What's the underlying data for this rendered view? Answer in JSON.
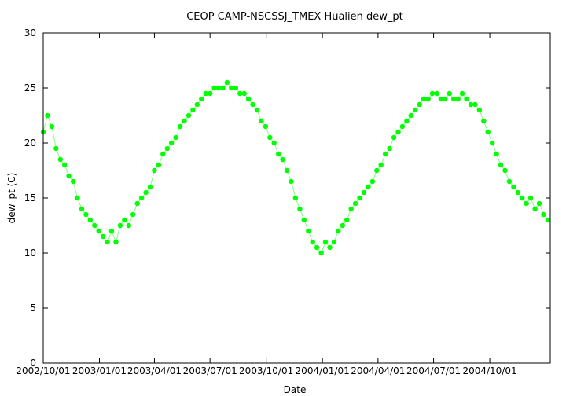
{
  "chart_data": {
    "type": "scatter",
    "title": "CEOP CAMP-NSCSSJ_TMEX Hualien  dew_pt",
    "xlabel": "Date",
    "ylabel": "dew_pt (C)",
    "ylim": [
      0,
      30
    ],
    "yticks": [
      0,
      5,
      10,
      15,
      20,
      25,
      30
    ],
    "xlim": [
      "2002-10-01",
      "2005-01-08"
    ],
    "xticks": [
      {
        "date": "2002-10-01",
        "label": "2002/10/01"
      },
      {
        "date": "2003-01-01",
        "label": "2003/01/01"
      },
      {
        "date": "2003-04-01",
        "label": "2003/04/01"
      },
      {
        "date": "2003-07-01",
        "label": "2003/07/01"
      },
      {
        "date": "2003-10-01",
        "label": "2003/10/01"
      },
      {
        "date": "2004-01-01",
        "label": "2004/01/01"
      },
      {
        "date": "2004-04-01",
        "label": "2004/04/01"
      },
      {
        "date": "2004-07-01",
        "label": "2004/07/01"
      },
      {
        "date": "2004-10-01",
        "label": "2004/10/01"
      }
    ],
    "grid": false,
    "marker_color": "#00ff00",
    "series": [
      {
        "points": [
          [
            "2002-10-01",
            21.0
          ],
          [
            "2002-10-08",
            22.5
          ],
          [
            "2002-10-15",
            21.5
          ],
          [
            "2002-10-22",
            19.5
          ],
          [
            "2002-10-29",
            18.5
          ],
          [
            "2002-11-05",
            18.0
          ],
          [
            "2002-11-12",
            17.0
          ],
          [
            "2002-11-19",
            16.5
          ],
          [
            "2002-11-26",
            15.0
          ],
          [
            "2002-12-03",
            14.0
          ],
          [
            "2002-12-10",
            13.5
          ],
          [
            "2002-12-17",
            13.0
          ],
          [
            "2002-12-24",
            12.5
          ],
          [
            "2002-12-31",
            12.0
          ],
          [
            "2003-01-07",
            11.5
          ],
          [
            "2003-01-14",
            11.0
          ],
          [
            "2003-01-21",
            12.0
          ],
          [
            "2003-01-28",
            11.0
          ],
          [
            "2003-02-04",
            12.5
          ],
          [
            "2003-02-11",
            13.0
          ],
          [
            "2003-02-18",
            12.5
          ],
          [
            "2003-02-25",
            13.5
          ],
          [
            "2003-03-04",
            14.5
          ],
          [
            "2003-03-11",
            15.0
          ],
          [
            "2003-03-18",
            15.5
          ],
          [
            "2003-03-25",
            16.0
          ],
          [
            "2003-04-01",
            17.5
          ],
          [
            "2003-04-08",
            18.0
          ],
          [
            "2003-04-15",
            19.0
          ],
          [
            "2003-04-22",
            19.5
          ],
          [
            "2003-04-29",
            20.0
          ],
          [
            "2003-05-06",
            20.5
          ],
          [
            "2003-05-13",
            21.5
          ],
          [
            "2003-05-20",
            22.0
          ],
          [
            "2003-05-27",
            22.5
          ],
          [
            "2003-06-03",
            23.0
          ],
          [
            "2003-06-10",
            23.5
          ],
          [
            "2003-06-17",
            24.0
          ],
          [
            "2003-06-24",
            24.5
          ],
          [
            "2003-07-01",
            24.5
          ],
          [
            "2003-07-08",
            25.0
          ],
          [
            "2003-07-15",
            25.0
          ],
          [
            "2003-07-22",
            25.0
          ],
          [
            "2003-07-29",
            25.5
          ],
          [
            "2003-08-05",
            25.0
          ],
          [
            "2003-08-12",
            25.0
          ],
          [
            "2003-08-19",
            24.5
          ],
          [
            "2003-08-26",
            24.5
          ],
          [
            "2003-09-02",
            24.0
          ],
          [
            "2003-09-09",
            23.5
          ],
          [
            "2003-09-16",
            23.0
          ],
          [
            "2003-09-23",
            22.0
          ],
          [
            "2003-09-30",
            21.5
          ],
          [
            "2003-10-07",
            20.5
          ],
          [
            "2003-10-14",
            20.0
          ],
          [
            "2003-10-21",
            19.0
          ],
          [
            "2003-10-28",
            18.5
          ],
          [
            "2003-11-04",
            17.5
          ],
          [
            "2003-11-11",
            16.5
          ],
          [
            "2003-11-18",
            15.0
          ],
          [
            "2003-11-25",
            14.0
          ],
          [
            "2003-12-02",
            13.0
          ],
          [
            "2003-12-09",
            12.0
          ],
          [
            "2003-12-16",
            11.0
          ],
          [
            "2003-12-23",
            10.5
          ],
          [
            "2003-12-30",
            10.0
          ],
          [
            "2004-01-06",
            11.0
          ],
          [
            "2004-01-13",
            10.5
          ],
          [
            "2004-01-20",
            11.0
          ],
          [
            "2004-01-27",
            12.0
          ],
          [
            "2004-02-03",
            12.5
          ],
          [
            "2004-02-10",
            13.0
          ],
          [
            "2004-02-17",
            14.0
          ],
          [
            "2004-02-24",
            14.5
          ],
          [
            "2004-03-02",
            15.0
          ],
          [
            "2004-03-09",
            15.5
          ],
          [
            "2004-03-16",
            16.0
          ],
          [
            "2004-03-23",
            16.5
          ],
          [
            "2004-03-30",
            17.5
          ],
          [
            "2004-04-06",
            18.0
          ],
          [
            "2004-04-13",
            19.0
          ],
          [
            "2004-04-20",
            19.5
          ],
          [
            "2004-04-27",
            20.5
          ],
          [
            "2004-05-04",
            21.0
          ],
          [
            "2004-05-11",
            21.5
          ],
          [
            "2004-05-18",
            22.0
          ],
          [
            "2004-05-25",
            22.5
          ],
          [
            "2004-06-01",
            23.0
          ],
          [
            "2004-06-08",
            23.5
          ],
          [
            "2004-06-15",
            24.0
          ],
          [
            "2004-06-22",
            24.0
          ],
          [
            "2004-06-29",
            24.5
          ],
          [
            "2004-07-06",
            24.5
          ],
          [
            "2004-07-13",
            24.0
          ],
          [
            "2004-07-20",
            24.0
          ],
          [
            "2004-07-27",
            24.5
          ],
          [
            "2004-08-03",
            24.0
          ],
          [
            "2004-08-10",
            24.0
          ],
          [
            "2004-08-17",
            24.5
          ],
          [
            "2004-08-24",
            24.0
          ],
          [
            "2004-08-31",
            23.5
          ],
          [
            "2004-09-07",
            23.5
          ],
          [
            "2004-09-14",
            23.0
          ],
          [
            "2004-09-21",
            22.0
          ],
          [
            "2004-09-28",
            21.0
          ],
          [
            "2004-10-05",
            20.0
          ],
          [
            "2004-10-12",
            19.0
          ],
          [
            "2004-10-19",
            18.0
          ],
          [
            "2004-10-26",
            17.5
          ],
          [
            "2004-11-02",
            16.5
          ],
          [
            "2004-11-09",
            16.0
          ],
          [
            "2004-11-16",
            15.5
          ],
          [
            "2004-11-23",
            15.0
          ],
          [
            "2004-11-30",
            14.5
          ],
          [
            "2004-12-07",
            15.0
          ],
          [
            "2004-12-14",
            14.0
          ],
          [
            "2004-12-21",
            14.5
          ],
          [
            "2004-12-28",
            13.5
          ],
          [
            "2005-01-04",
            13.0
          ]
        ]
      }
    ]
  }
}
